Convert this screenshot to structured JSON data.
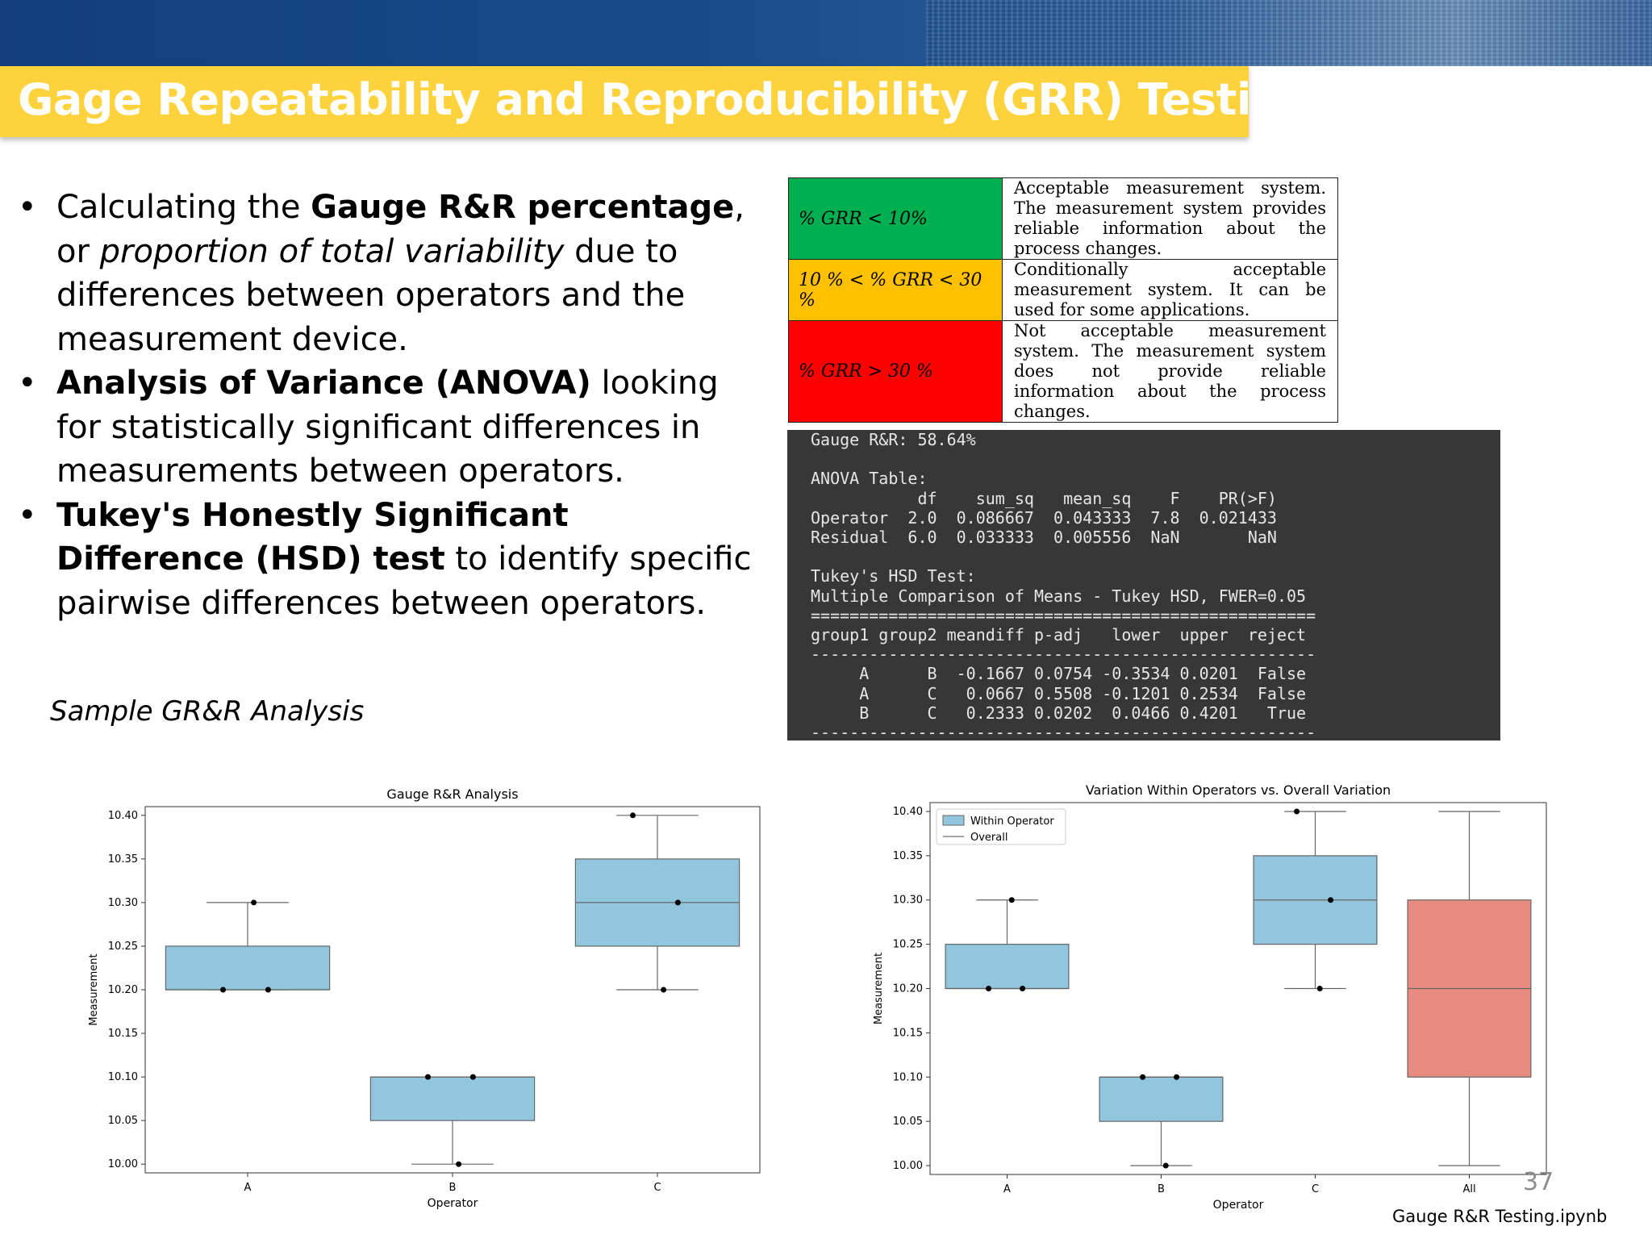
{
  "slide": {
    "title": "Gage Repeatability and Reproducibility (GRR) Testing",
    "page_number": "37",
    "file_label": "Gauge R&R Testing.ipynb",
    "sample_caption": "Sample GR&R Analysis"
  },
  "bullets": [
    {
      "marker": "•",
      "parts": [
        {
          "text": "Calculating the ",
          "style": "normal"
        },
        {
          "text": "Gauge R&R percentage",
          "style": "bold"
        },
        {
          "text": ", or ",
          "style": "normal"
        },
        {
          "text": "proportion of total variability",
          "style": "italic"
        },
        {
          "text": " due to differences between operators and the measurement device.",
          "style": "normal"
        }
      ]
    },
    {
      "marker": "•",
      "parts": [
        {
          "text": " Analysis of Variance (ANOVA)",
          "style": "bold"
        },
        {
          "text": " looking for statistically significant differences in measurements between operators.",
          "style": "normal"
        }
      ]
    },
    {
      "marker": "•",
      "parts": [
        {
          "text": " Tukey's Honestly Significant Difference (HSD) test",
          "style": "bold"
        },
        {
          "text": " to identify specific pairwise differences between operators.",
          "style": "normal"
        }
      ]
    }
  ],
  "grr_table": {
    "rows": [
      {
        "condition": "% GRR  <  10%",
        "color": "#00b050",
        "description": "Acceptable measurement system. The measurement system provides reliable information about the process changes."
      },
      {
        "condition": "10 %  < % GRR  <  30 %",
        "color": "#ffc000",
        "description": "Conditionally acceptable measurement system. It can be used for some applications."
      },
      {
        "condition": "% GRR  >  30 %",
        "color": "#ff0000",
        "description": "Not acceptable measurement system. The measurement system does not provide reliable information about the process changes."
      }
    ]
  },
  "console": {
    "lines": [
      "Gauge R&R: 58.64%",
      "",
      "ANOVA Table:",
      "           df    sum_sq   mean_sq    F    PR(>F)",
      "Operator  2.0  0.086667  0.043333  7.8  0.021433",
      "Residual  6.0  0.033333  0.005556  NaN       NaN",
      "",
      "Tukey's HSD Test:",
      "Multiple Comparison of Means - Tukey HSD, FWER=0.05",
      "====================================================",
      "group1 group2 meandiff p-adj   lower  upper  reject",
      "----------------------------------------------------",
      "     A      B  -0.1667 0.0754 -0.3534 0.0201  False",
      "     A      C   0.0667 0.5508 -0.1201 0.2534  False",
      "     B      C   0.2333 0.0202  0.0466 0.4201   True",
      "----------------------------------------------------"
    ]
  },
  "chart_data": [
    {
      "type": "box",
      "title": "Gauge R&R Analysis",
      "xlabel": "Operator",
      "ylabel": "Measurement",
      "categories": [
        "A",
        "B",
        "C"
      ],
      "yticks": [
        "10.00",
        "10.05",
        "10.10",
        "10.15",
        "10.20",
        "10.25",
        "10.30",
        "10.35",
        "10.40"
      ],
      "ylim": [
        9.99,
        10.41
      ],
      "box_color": "#92c5de",
      "boxes": [
        {
          "category": "A",
          "min": 10.2,
          "q1": 10.2,
          "median": 10.2,
          "q3": 10.25,
          "max": 10.3
        },
        {
          "category": "B",
          "min": 10.0,
          "q1": 10.05,
          "median": 10.1,
          "q3": 10.1,
          "max": 10.1
        },
        {
          "category": "C",
          "min": 10.2,
          "q1": 10.25,
          "median": 10.3,
          "q3": 10.35,
          "max": 10.4
        }
      ],
      "points": [
        {
          "category": "A",
          "values": [
            10.2,
            10.2,
            10.3
          ]
        },
        {
          "category": "B",
          "values": [
            10.1,
            10.1,
            10.0
          ]
        },
        {
          "category": "C",
          "values": [
            10.4,
            10.3,
            10.2
          ]
        }
      ],
      "grid": false
    },
    {
      "type": "box",
      "title": "Variation Within Operators vs. Overall Variation",
      "xlabel": "Operator",
      "ylabel": "Measurement",
      "categories": [
        "A",
        "B",
        "C",
        "All"
      ],
      "yticks": [
        "10.00",
        "10.05",
        "10.10",
        "10.15",
        "10.20",
        "10.25",
        "10.30",
        "10.35",
        "10.40"
      ],
      "ylim": [
        9.99,
        10.41
      ],
      "legend": [
        {
          "label": "Within Operator",
          "color": "#92c5de",
          "kind": "patch"
        },
        {
          "label": "Overall",
          "color": "#888888",
          "kind": "line"
        }
      ],
      "legend_position": "top-left",
      "boxes": [
        {
          "category": "A",
          "min": 10.2,
          "q1": 10.2,
          "median": 10.2,
          "q3": 10.25,
          "max": 10.3,
          "color": "#92c5de"
        },
        {
          "category": "B",
          "min": 10.0,
          "q1": 10.05,
          "median": 10.1,
          "q3": 10.1,
          "max": 10.1,
          "color": "#92c5de"
        },
        {
          "category": "C",
          "min": 10.2,
          "q1": 10.25,
          "median": 10.3,
          "q3": 10.35,
          "max": 10.4,
          "color": "#92c5de"
        },
        {
          "category": "All",
          "min": 10.0,
          "q1": 10.1,
          "median": 10.2,
          "q3": 10.3,
          "max": 10.4,
          "color": "#e88b80"
        }
      ],
      "points": [
        {
          "category": "A",
          "values": [
            10.2,
            10.2,
            10.3
          ]
        },
        {
          "category": "B",
          "values": [
            10.1,
            10.1,
            10.0
          ]
        },
        {
          "category": "C",
          "values": [
            10.4,
            10.3,
            10.2
          ]
        }
      ],
      "grid": false
    }
  ]
}
